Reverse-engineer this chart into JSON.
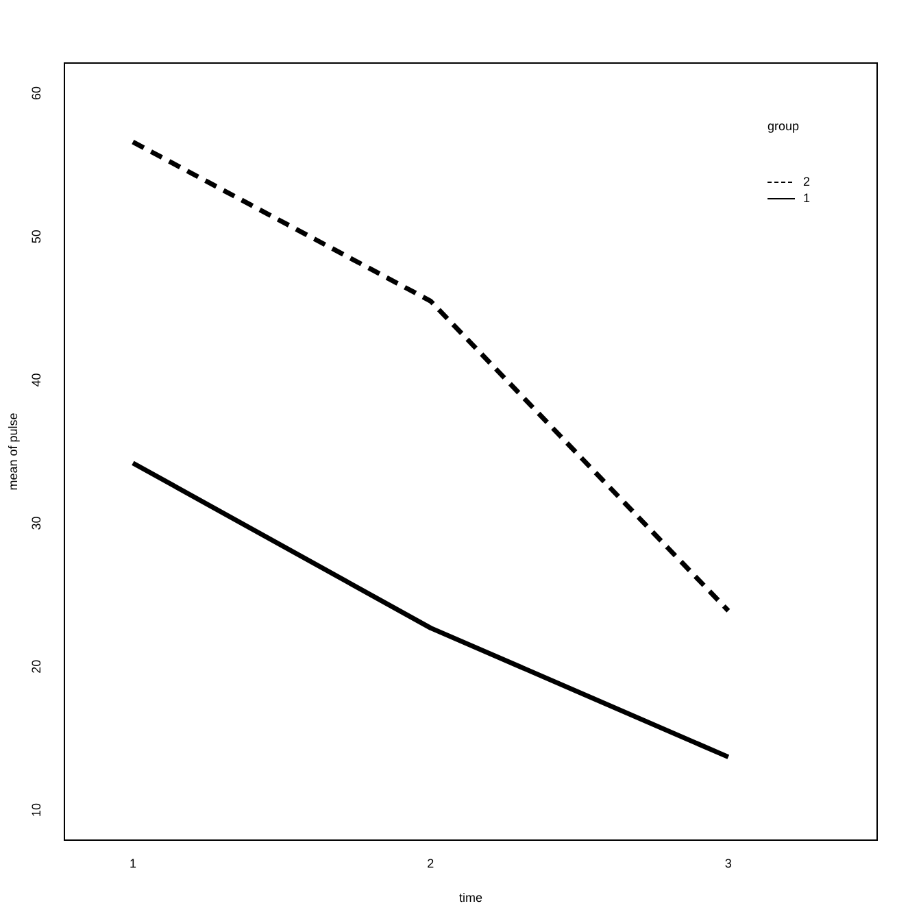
{
  "chart_data": {
    "type": "line",
    "xlabel": "time",
    "ylabel": "mean of pulse",
    "legend_title": "group",
    "legend": "top right",
    "x": [
      1,
      2,
      3
    ],
    "xlim": [
      0.77,
      3.5
    ],
    "xticks": [
      1,
      2,
      3
    ],
    "ylim": [
      7.9,
      62.1
    ],
    "yticks": [
      10,
      20,
      30,
      40,
      50,
      60
    ],
    "grid": false,
    "marker": "none",
    "series": [
      {
        "name": "2",
        "color": "#000000",
        "line_style": "dashed",
        "values": [
          56.6,
          45.5,
          23.9
        ]
      },
      {
        "name": "1",
        "color": "#000000",
        "line_style": "solid",
        "values": [
          34.2,
          22.7,
          13.7
        ]
      }
    ]
  }
}
